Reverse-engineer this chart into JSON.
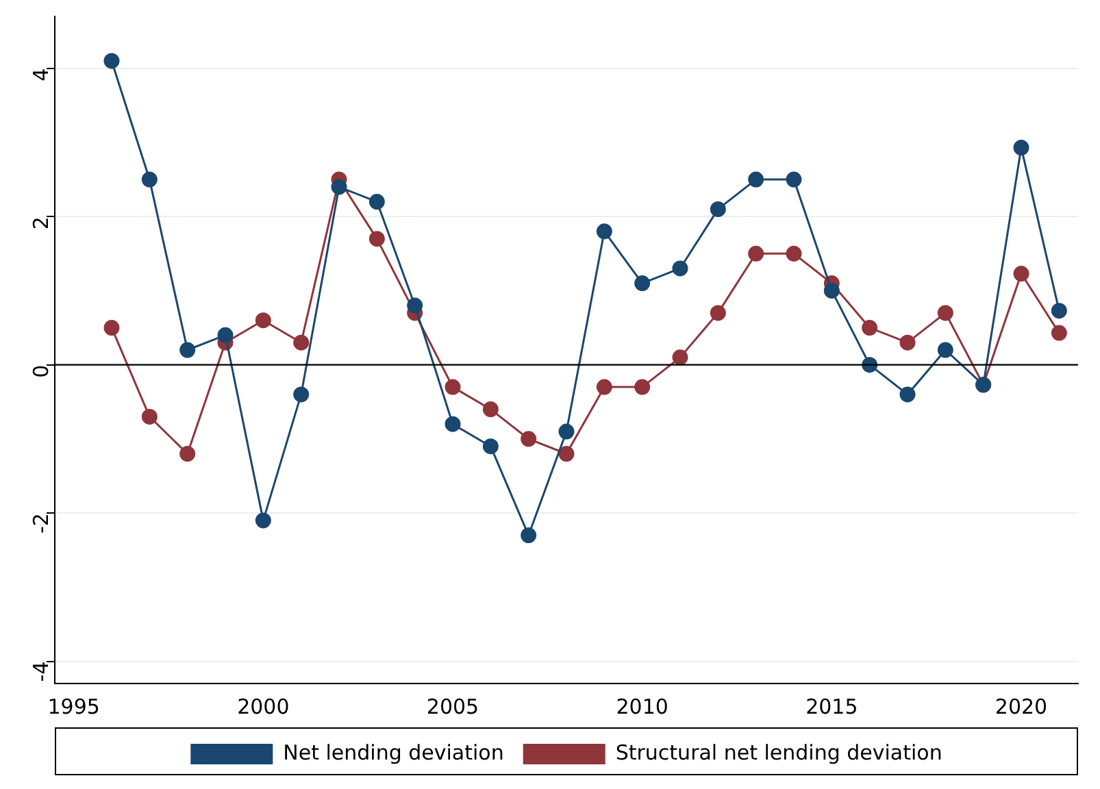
{
  "chart_data": {
    "type": "line",
    "x": [
      1996,
      1997,
      1998,
      1999,
      2000,
      2001,
      2002,
      2003,
      2004,
      2005,
      2006,
      2007,
      2008,
      2009,
      2010,
      2011,
      2012,
      2013,
      2014,
      2015,
      2016,
      2017,
      2018,
      2019,
      2020,
      2021
    ],
    "series": [
      {
        "name": "Net lending deviation",
        "color": "#1a476f",
        "values": [
          4.1,
          2.5,
          0.2,
          0.4,
          -2.1,
          -0.4,
          2.4,
          2.2,
          0.8,
          -0.8,
          -1.1,
          -2.3,
          -0.9,
          1.8,
          1.1,
          1.3,
          2.1,
          2.5,
          2.5,
          1.0,
          0.0,
          -0.4,
          0.2,
          -0.27,
          2.93,
          0.73
        ]
      },
      {
        "name": "Structural net lending deviation",
        "color": "#90353b",
        "values": [
          0.5,
          -0.7,
          -1.2,
          0.3,
          0.6,
          0.3,
          2.5,
          1.7,
          0.7,
          -0.3,
          -0.6,
          -1.0,
          -1.2,
          -0.3,
          -0.3,
          0.1,
          0.7,
          1.5,
          1.5,
          1.1,
          0.5,
          0.3,
          0.7,
          -0.27,
          1.23,
          0.43
        ]
      }
    ],
    "xlim": [
      1994.5,
      2021.5
    ],
    "xticks": [
      1995,
      2000,
      2005,
      2010,
      2015,
      2020
    ],
    "ylim": [
      -4.3,
      4.7
    ],
    "yticks": [
      -4,
      -2,
      0,
      2,
      4
    ],
    "grid": "y",
    "legend": "bottom",
    "marker": "circle",
    "line_style": "solid",
    "ref_lines": [
      {
        "axis": "y",
        "value": 0,
        "color": "#000000"
      }
    ]
  }
}
